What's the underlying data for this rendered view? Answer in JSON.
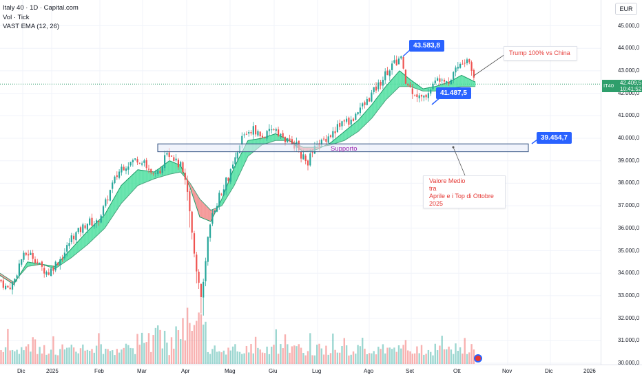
{
  "legend": {
    "line1": "Italy 40 · 1D · Capital.com",
    "line2": "Vol · Tick",
    "line3": "VAST EMA (12, 26)"
  },
  "currency": "EUR",
  "price_tag": {
    "symbol": "IT40",
    "price": "42.409,5",
    "time": "10:41:52"
  },
  "callouts": {
    "high": "43.583,8",
    "low": "41.487,5",
    "support_level": "39.454,7"
  },
  "notes": {
    "trump": "Trump 100% vs China",
    "support": "Supporto",
    "valore_line1": "Valore Medio",
    "valore_line2": "tra",
    "valore_line3": "Aprile e i Top di Ottobre",
    "valore_line4": "2025"
  },
  "colors": {
    "up": "#26a69a",
    "down": "#ef5350",
    "ema_bull_fill": "#3ddc97",
    "ema_bear_fill": "#f28080",
    "accent": "#2962ff",
    "note_red": "#e53935",
    "support_purple": "#9c27b0"
  },
  "chart_data": {
    "type": "candlestick",
    "instrument": "Italy 40",
    "timeframe": "1D",
    "y_ticks": [
      "45.000,0",
      "44.000,0",
      "43.000,0",
      "42.000,0",
      "41.000,0",
      "40.000,0",
      "39.000,0",
      "38.000,0",
      "37.000,0",
      "36.000,0",
      "35.000,0",
      "34.000,0",
      "33.000,0",
      "32.000,0",
      "31.000,0",
      "30.000,0"
    ],
    "x_ticks": [
      "Dic",
      "2025",
      "Feb",
      "Mar",
      "Apr",
      "Mag",
      "Giu",
      "Lug",
      "Ago",
      "Set",
      "Ott",
      "Nov",
      "Dic",
      "2026"
    ],
    "ylim": [
      29900,
      45600
    ],
    "support_zone": [
      39400,
      39750
    ],
    "close_path": [
      [
        0,
        33700
      ],
      [
        10,
        33300
      ],
      [
        20,
        33600
      ],
      [
        30,
        34600
      ],
      [
        40,
        34900
      ],
      [
        50,
        34700
      ],
      [
        58,
        34300
      ],
      [
        70,
        34000
      ],
      [
        80,
        34400
      ],
      [
        92,
        34800
      ],
      [
        104,
        35600
      ],
      [
        116,
        35900
      ],
      [
        128,
        36300
      ],
      [
        140,
        36200
      ],
      [
        152,
        37000
      ],
      [
        164,
        38000
      ],
      [
        176,
        38700
      ],
      [
        188,
        38900
      ],
      [
        200,
        39100
      ],
      [
        212,
        38800
      ],
      [
        224,
        38300
      ],
      [
        234,
        38500
      ],
      [
        240,
        39500
      ],
      [
        248,
        39300
      ],
      [
        256,
        39000
      ],
      [
        264,
        38700
      ],
      [
        270,
        38100
      ],
      [
        276,
        36500
      ],
      [
        282,
        35000
      ],
      [
        287,
        33800
      ],
      [
        291,
        32800
      ],
      [
        296,
        33600
      ],
      [
        302,
        35500
      ],
      [
        310,
        36800
      ],
      [
        318,
        37400
      ],
      [
        326,
        38000
      ],
      [
        334,
        38400
      ],
      [
        344,
        39200
      ],
      [
        352,
        40100
      ],
      [
        360,
        40300
      ],
      [
        370,
        40400
      ],
      [
        380,
        40000
      ],
      [
        390,
        40200
      ],
      [
        400,
        40500
      ],
      [
        410,
        40000
      ],
      [
        420,
        39800
      ],
      [
        430,
        39700
      ],
      [
        438,
        39200
      ],
      [
        446,
        38900
      ],
      [
        454,
        39400
      ],
      [
        462,
        39700
      ],
      [
        472,
        40000
      ],
      [
        482,
        40200
      ],
      [
        490,
        40500
      ],
      [
        500,
        40800
      ],
      [
        510,
        40700
      ],
      [
        520,
        41300
      ],
      [
        530,
        41500
      ],
      [
        540,
        42000
      ],
      [
        550,
        42400
      ],
      [
        560,
        42900
      ],
      [
        568,
        43200
      ],
      [
        576,
        43400
      ],
      [
        582,
        43600
      ],
      [
        588,
        42500
      ],
      [
        596,
        42200
      ],
      [
        606,
        41900
      ],
      [
        614,
        41700
      ],
      [
        622,
        42100
      ],
      [
        632,
        42500
      ],
      [
        642,
        42800
      ],
      [
        652,
        42500
      ],
      [
        662,
        43200
      ],
      [
        672,
        43300
      ],
      [
        680,
        43500
      ],
      [
        686,
        42900
      ],
      [
        690,
        42400
      ]
    ],
    "ema_fast_path": [
      [
        0,
        33900
      ],
      [
        20,
        33500
      ],
      [
        40,
        34500
      ],
      [
        60,
        34400
      ],
      [
        80,
        34300
      ],
      [
        104,
        35100
      ],
      [
        128,
        35900
      ],
      [
        152,
        36600
      ],
      [
        176,
        37900
      ],
      [
        200,
        38600
      ],
      [
        224,
        38500
      ],
      [
        246,
        39000
      ],
      [
        262,
        38800
      ],
      [
        276,
        37800
      ],
      [
        290,
        36500
      ],
      [
        306,
        36300
      ],
      [
        322,
        37300
      ],
      [
        340,
        38700
      ],
      [
        360,
        39900
      ],
      [
        380,
        40000
      ],
      [
        400,
        40200
      ],
      [
        420,
        39900
      ],
      [
        440,
        39400
      ],
      [
        460,
        39500
      ],
      [
        480,
        39800
      ],
      [
        500,
        40300
      ],
      [
        520,
        40800
      ],
      [
        540,
        41500
      ],
      [
        560,
        42300
      ],
      [
        580,
        43000
      ],
      [
        596,
        42600
      ],
      [
        614,
        42200
      ],
      [
        632,
        42300
      ],
      [
        652,
        42500
      ],
      [
        670,
        42800
      ],
      [
        690,
        42500
      ]
    ],
    "ema_slow_path": [
      [
        0,
        34000
      ],
      [
        20,
        33600
      ],
      [
        40,
        34300
      ],
      [
        60,
        34400
      ],
      [
        80,
        34200
      ],
      [
        104,
        34700
      ],
      [
        128,
        35300
      ],
      [
        152,
        36000
      ],
      [
        176,
        37100
      ],
      [
        200,
        37900
      ],
      [
        224,
        38200
      ],
      [
        246,
        38400
      ],
      [
        262,
        38500
      ],
      [
        276,
        38000
      ],
      [
        290,
        37300
      ],
      [
        306,
        36800
      ],
      [
        322,
        37000
      ],
      [
        340,
        37900
      ],
      [
        360,
        39200
      ],
      [
        380,
        39700
      ],
      [
        400,
        39900
      ],
      [
        420,
        39900
      ],
      [
        440,
        39600
      ],
      [
        460,
        39600
      ],
      [
        480,
        39700
      ],
      [
        500,
        39900
      ],
      [
        520,
        40300
      ],
      [
        540,
        40900
      ],
      [
        560,
        41700
      ],
      [
        580,
        42300
      ],
      [
        596,
        42300
      ],
      [
        614,
        42100
      ],
      [
        632,
        42100
      ],
      [
        652,
        42200
      ],
      [
        670,
        42300
      ],
      [
        690,
        42300
      ]
    ]
  }
}
